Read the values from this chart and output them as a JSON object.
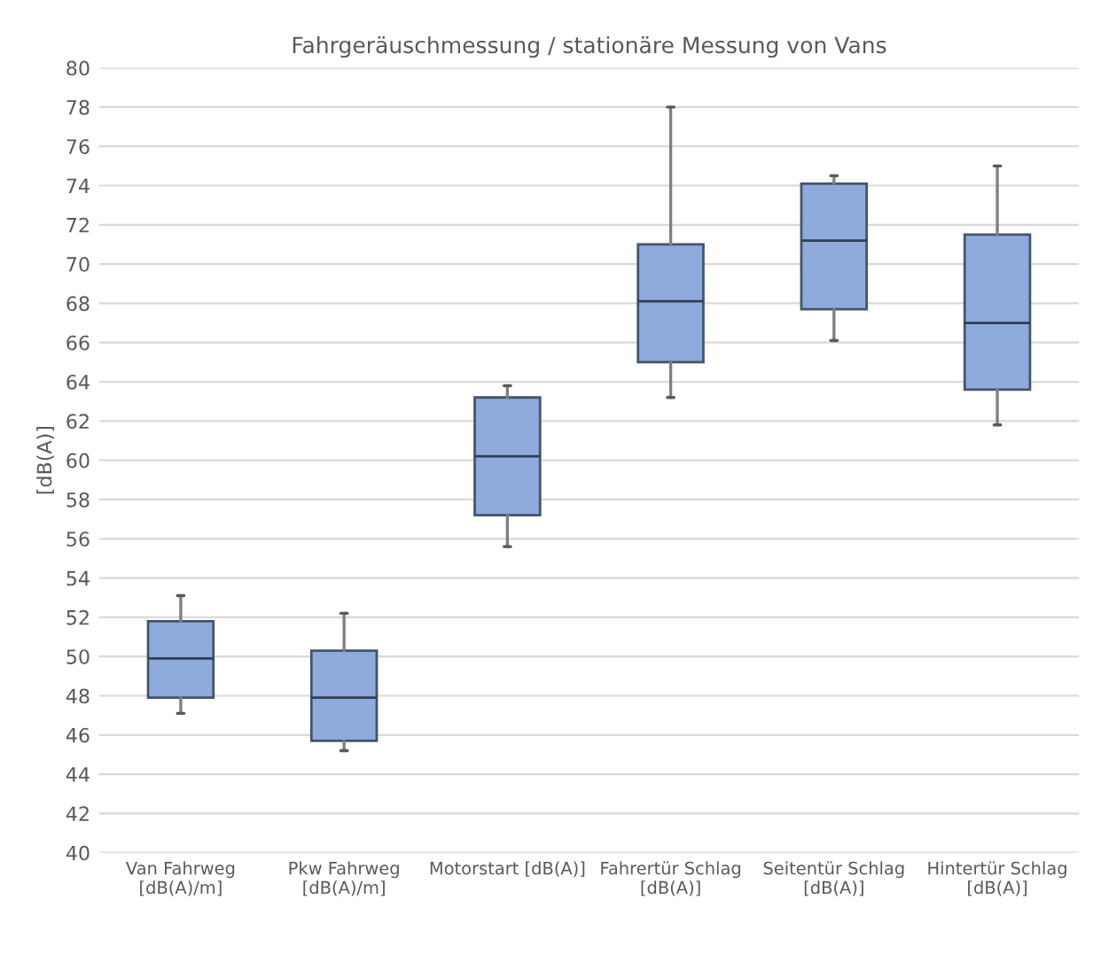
{
  "chart_data": {
    "type": "box",
    "title": "Fahrgeräuschmessung / stationäre Messung von Vans",
    "ylabel": "[dB(A)]",
    "categories": [
      "Van Fahrweg\n[dB(A)/m]",
      "Pkw Fahrweg\n[dB(A)/m]",
      "Motorstart [dB(A)]",
      "Fahrertür Schlag\n[dB(A)]",
      "Seitentür Schlag\n[dB(A)]",
      "Hintertür Schlag\n[dB(A)]"
    ],
    "boxes": [
      {
        "low": 47.1,
        "q1": 47.9,
        "median": 49.9,
        "q3": 51.8,
        "high": 53.1
      },
      {
        "low": 45.2,
        "q1": 45.7,
        "median": 47.9,
        "q3": 50.3,
        "high": 52.2
      },
      {
        "low": 55.6,
        "q1": 57.2,
        "median": 60.2,
        "q3": 63.2,
        "high": 63.8
      },
      {
        "low": 63.2,
        "q1": 65.0,
        "median": 68.1,
        "q3": 71.0,
        "high": 78.0
      },
      {
        "low": 66.1,
        "q1": 67.7,
        "median": 71.2,
        "q3": 74.1,
        "high": 74.5
      },
      {
        "low": 61.8,
        "q1": 63.6,
        "median": 67.0,
        "q3": 71.5,
        "high": 75.0
      }
    ],
    "color": "#8faadc",
    "ylim": [
      40,
      80
    ],
    "yticks": [
      40,
      42,
      44,
      46,
      48,
      50,
      52,
      54,
      56,
      58,
      60,
      62,
      64,
      66,
      68,
      70,
      72,
      74,
      76,
      78,
      80
    ],
    "grid": "y",
    "legend": false
  }
}
